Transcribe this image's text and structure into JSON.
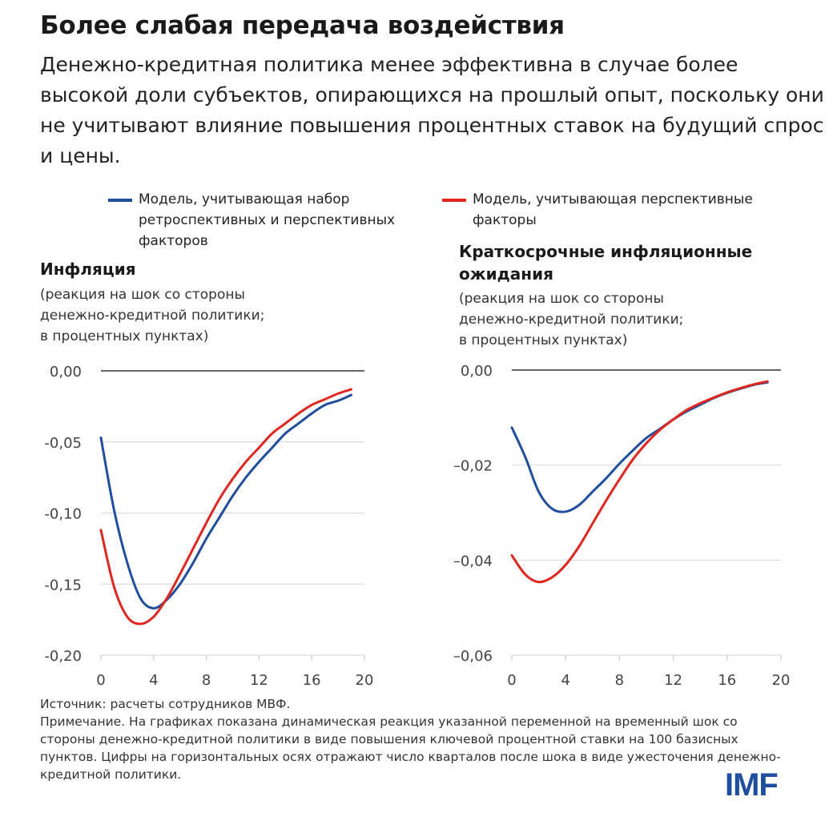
{
  "title": "Более слабая передача воздействия",
  "subtitle": "Денежно-кредитная политика менее эффективна в случае более высокой доли субъектов, опирающихся на прошлый опыт, поскольку они не учитывают влияние повышения процентных ставок на будущий спрос и цены.",
  "legend": [
    {
      "label": "Модель, учитывающая набор ретроспективных и перспективных факторов",
      "color": "#1f4e9e"
    },
    {
      "label": "Модель, учитывающая перспективные факторы",
      "color": "#e0271f"
    }
  ],
  "chart_data": [
    {
      "type": "line",
      "title": "Инфляция",
      "ylabel": "(реакция на шок со стороны денежно-кредитной политики; в процентных пунктах)",
      "xlim": [
        0,
        20
      ],
      "ylim": [
        -0.2,
        0.0
      ],
      "xticks": [
        "0",
        "4",
        "8",
        "12",
        "16",
        "20"
      ],
      "yticks": [
        "0,00",
        "-0,05",
        "-0,10",
        "-0,15",
        "-0,20"
      ],
      "grid": true,
      "x": [
        0,
        1,
        2,
        3,
        4,
        5,
        6,
        7,
        8,
        9,
        10,
        11,
        12,
        13,
        14,
        15,
        16,
        17,
        18,
        19
      ],
      "series": [
        {
          "name": "Модель, учитывающая набор ретроспективных и перспективных факторов",
          "color": "#1f4e9e",
          "values": [
            -0.047,
            -0.098,
            -0.135,
            -0.16,
            -0.167,
            -0.161,
            -0.15,
            -0.135,
            -0.118,
            -0.103,
            -0.088,
            -0.075,
            -0.064,
            -0.054,
            -0.044,
            -0.037,
            -0.03,
            -0.024,
            -0.021,
            -0.017
          ]
        },
        {
          "name": "Модель, учитывающая перспективные факторы",
          "color": "#e0271f",
          "values": [
            -0.112,
            -0.152,
            -0.173,
            -0.178,
            -0.173,
            -0.16,
            -0.143,
            -0.125,
            -0.107,
            -0.09,
            -0.076,
            -0.064,
            -0.054,
            -0.044,
            -0.037,
            -0.03,
            -0.024,
            -0.02,
            -0.016,
            -0.013
          ]
        }
      ]
    },
    {
      "type": "line",
      "title": "Краткосрочные инфляционные ожидания",
      "ylabel": "(реакция на шок со стороны денежно-кредитной политики; в процентных пунктах)",
      "xlim": [
        0,
        20
      ],
      "ylim": [
        -0.06,
        0.0
      ],
      "xticks": [
        "0",
        "4",
        "8",
        "12",
        "16",
        "20"
      ],
      "yticks": [
        "0,00",
        "–0,02",
        "–0,04",
        "–0,06"
      ],
      "grid": true,
      "x": [
        0,
        1,
        2,
        3,
        4,
        5,
        6,
        7,
        8,
        9,
        10,
        11,
        12,
        13,
        14,
        15,
        16,
        17,
        18,
        19
      ],
      "series": [
        {
          "name": "Модель, учитывающая набор ретроспективных и перспективных факторов",
          "color": "#1f4e9e",
          "values": [
            -0.0121,
            -0.0183,
            -0.0256,
            -0.0292,
            -0.0298,
            -0.0284,
            -0.0256,
            -0.0228,
            -0.0197,
            -0.0169,
            -0.0143,
            -0.0124,
            -0.0104,
            -0.0087,
            -0.0073,
            -0.0059,
            -0.0048,
            -0.0039,
            -0.0031,
            -0.0026
          ]
        },
        {
          "name": "Модель, учитывающая перспективные факторы",
          "color": "#e0271f",
          "values": [
            -0.039,
            -0.043,
            -0.0446,
            -0.0436,
            -0.041,
            -0.0371,
            -0.0323,
            -0.0275,
            -0.023,
            -0.0188,
            -0.0154,
            -0.0126,
            -0.0104,
            -0.0084,
            -0.007,
            -0.0058,
            -0.0047,
            -0.0038,
            -0.003,
            -0.0024
          ]
        }
      ]
    }
  ],
  "chart_units": [
    [
      "(реакция на шок со стороны",
      "денежно-кредитной политики;",
      "в процентных пунктах)"
    ],
    [
      "(реакция на шок со стороны",
      "денежно-кредитной политики;",
      "в процентных пунктах)"
    ]
  ],
  "chart_titles": [
    [
      "Инфляция"
    ],
    [
      "Краткосрочные инфляционные",
      "ожидания"
    ]
  ],
  "footer": {
    "source": "Источник: расчеты сотрудников МВФ.",
    "note": "Примечание. На графиках показана динамическая реакция указанной переменной на временный шок со стороны денежно-кредитной политики в виде повышения ключевой процентной ставки на 100 базисных пунктов. Цифры на горизонтальных осях отражают число кварталов после шока в виде ужесточения денежно-кредитной политики."
  },
  "logo": "IMF"
}
